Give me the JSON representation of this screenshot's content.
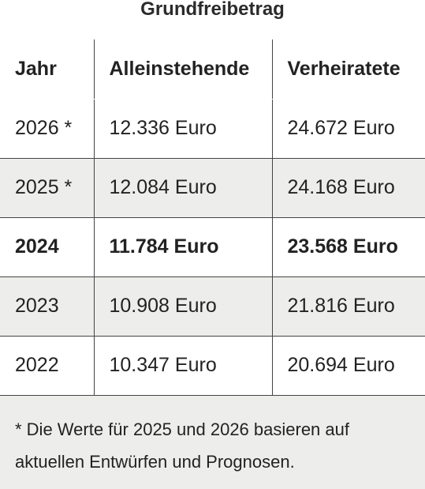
{
  "title": "Grundfreibetrag",
  "table": {
    "headers": [
      "Jahr",
      "Alleinstehende",
      "Verheiratete"
    ],
    "rows": [
      {
        "jahr": "2026 *",
        "alleinstehende": "12.336 Euro",
        "verheiratete": "24.672 Euro"
      },
      {
        "jahr": "2025 *",
        "alleinstehende": "12.084 Euro",
        "verheiratete": "24.168 Euro"
      },
      {
        "jahr": "2024",
        "alleinstehende": "11.784 Euro",
        "verheiratete": "23.568 Euro"
      },
      {
        "jahr": "2023",
        "alleinstehende": "10.908 Euro",
        "verheiratete": "21.816 Euro"
      },
      {
        "jahr": "2022",
        "alleinstehende": "10.347 Euro",
        "verheiratete": "20.694 Euro"
      }
    ]
  },
  "footnote": "* Die Werte für 2025 und 2026 basieren auf aktuellen Entwürfen und Prognosen."
}
